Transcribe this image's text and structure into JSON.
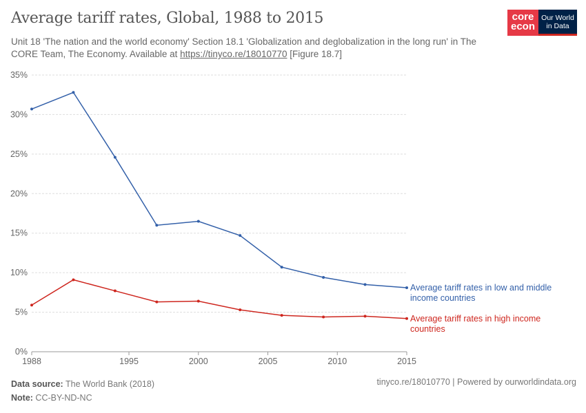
{
  "header": {
    "title": "Average tariff rates, Global, 1988 to 2015",
    "subtitle_pre": "Unit 18 'The nation and the world economy' Section 18.1 'Globalization and deglobalization in the long run' in The CORE Team, The Economy. Available at ",
    "subtitle_link": "https://tinyco.re/18010770",
    "subtitle_post": " [Figure 18.7]",
    "logo_core_line1": "core",
    "logo_core_line2": "econ",
    "logo_owid_line1": "Our World",
    "logo_owid_line2": "in Data"
  },
  "chart_data": {
    "type": "line",
    "title": "Average tariff rates, Global, 1988 to 2015",
    "x": [
      1988,
      1991,
      1994,
      1997,
      2000,
      2003,
      2006,
      2009,
      2012,
      2015
    ],
    "xticks": [
      "1988",
      "1995",
      "2000",
      "2005",
      "2010",
      "2015"
    ],
    "xtick_values": [
      1988,
      1995,
      2000,
      2005,
      2010,
      2015
    ],
    "yticks": [
      "0%",
      "5%",
      "10%",
      "15%",
      "20%",
      "25%",
      "30%",
      "35%"
    ],
    "ytick_values": [
      0,
      5,
      10,
      15,
      20,
      25,
      30,
      35
    ],
    "xlim": [
      1988,
      2015
    ],
    "ylim": [
      0,
      35
    ],
    "grid": "horizontal dashed",
    "legend": "inline-right",
    "series": [
      {
        "name": "Average tariff rates in low and middle income countries",
        "label_lines": [
          "Average tariff rates in low and middle",
          "income countries"
        ],
        "color": "#3360a9",
        "values": [
          30.7,
          32.8,
          24.6,
          16.0,
          16.5,
          14.7,
          10.7,
          9.4,
          8.5,
          8.1
        ]
      },
      {
        "name": "Average tariff rates in high income countries",
        "label_lines": [
          "Average tariff rates in high income",
          "countries"
        ],
        "color": "#ce261e",
        "values": [
          5.9,
          9.1,
          7.7,
          6.3,
          6.4,
          5.3,
          4.6,
          4.4,
          4.5,
          4.2
        ]
      }
    ]
  },
  "footer": {
    "source_label": "Data source:",
    "source": " The World Bank (2018)",
    "note_label": "Note:",
    "note": " CC-BY-ND-NC",
    "right": "tinyco.re/18010770 | Powered by ourworldindata.org"
  }
}
